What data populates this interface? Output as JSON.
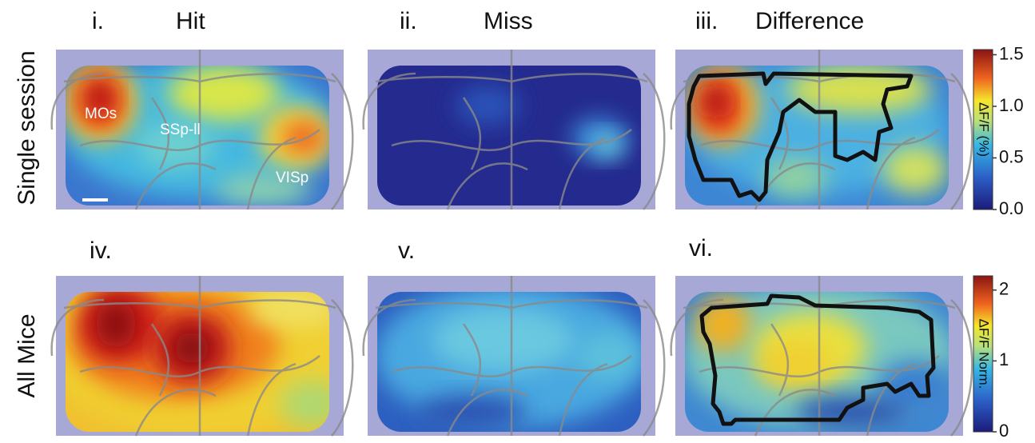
{
  "row_labels": [
    "Single session",
    "All Mice"
  ],
  "panels": [
    {
      "label": "i.",
      "title": "Hit"
    },
    {
      "label": "ii.",
      "title": "Miss"
    },
    {
      "label": "iii.",
      "title": "Difference"
    },
    {
      "label": "iv."
    },
    {
      "label": "v."
    },
    {
      "label": "vi."
    }
  ],
  "annotations": [
    "MOs",
    "SSp-ll",
    "VISp"
  ],
  "colorbars": [
    {
      "label": "ΔF/F (%)",
      "range": [
        0,
        1.55
      ],
      "ticks": [
        {
          "value": 0,
          "label": "0.0"
        },
        {
          "value": 0.5,
          "label": "0.5"
        },
        {
          "value": 1,
          "label": "1.0"
        },
        {
          "value": 1.5,
          "label": "1.5"
        }
      ]
    },
    {
      "label": "ΔF/F Norm.",
      "range": [
        0,
        2.2
      ],
      "ticks": [
        0,
        1,
        2
      ]
    }
  ]
}
